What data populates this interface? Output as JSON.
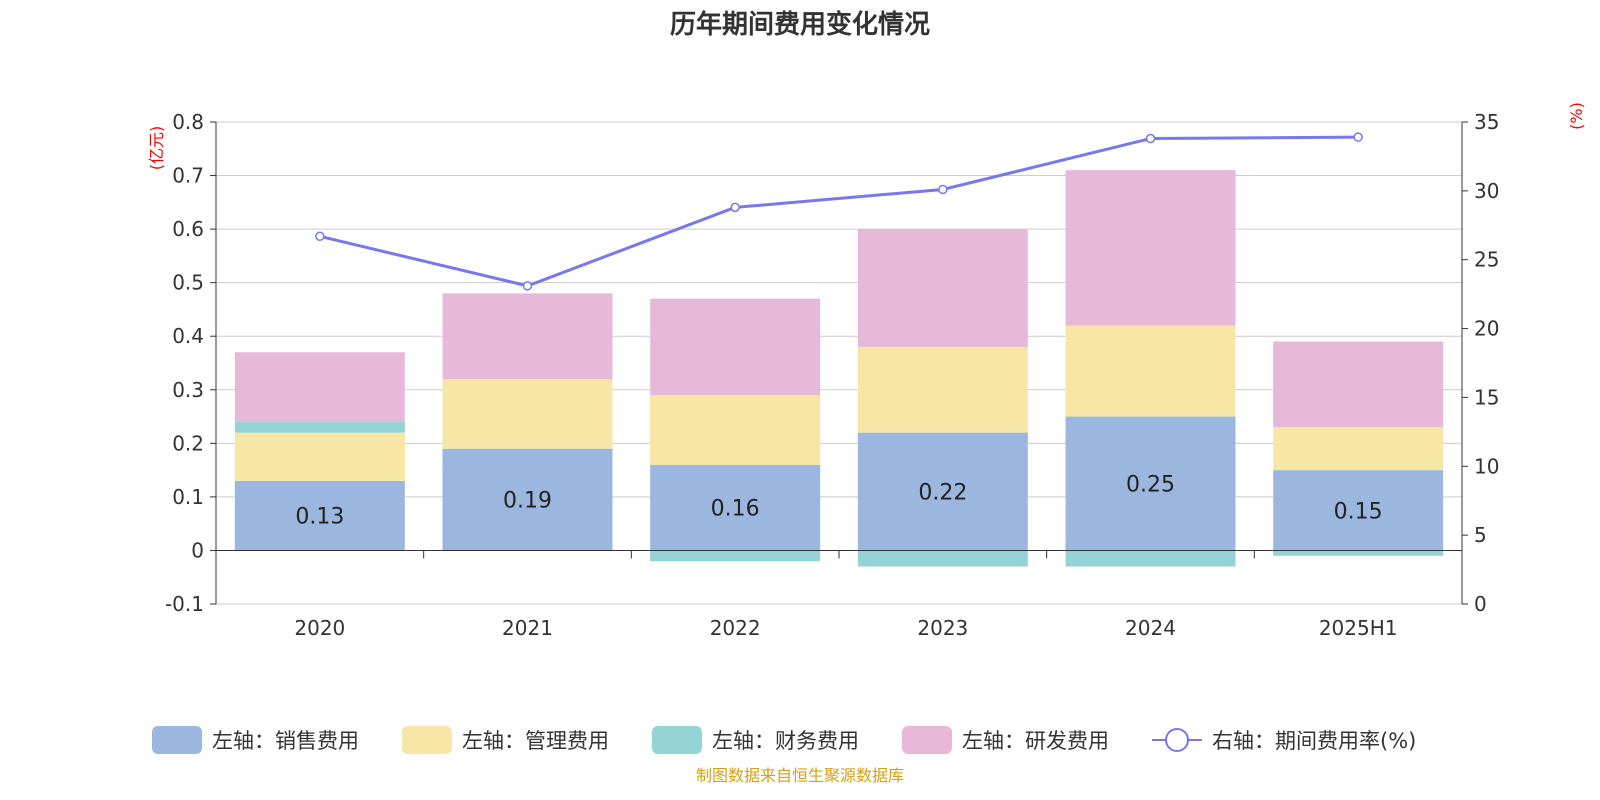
{
  "colors": {
    "sales": "#9bb7e0",
    "admin": "#f8e6a6",
    "finance": "#95d4d4",
    "rd": "#e8b8d8",
    "rate": "#7777ee",
    "unit": "#ff0000",
    "source": "#d4a017"
  },
  "chart_data": {
    "type": "bar",
    "stacked": true,
    "title": "历年期间费用变化情况",
    "categories": [
      "2020",
      "2021",
      "2022",
      "2023",
      "2024",
      "2025H1"
    ],
    "left_axis": {
      "unit": "(亿元)",
      "range": [
        -0.1,
        0.8
      ],
      "ticks": [
        "-0.1",
        "0",
        "0.1",
        "0.2",
        "0.3",
        "0.4",
        "0.5",
        "0.6",
        "0.7",
        "0.8"
      ]
    },
    "right_axis": {
      "unit": "(%)",
      "range": [
        0,
        35
      ],
      "ticks": [
        "0",
        "5",
        "10",
        "15",
        "20",
        "25",
        "30",
        "35"
      ]
    },
    "series": [
      {
        "name": "左轴：销售费用",
        "key": "sales",
        "values": [
          0.13,
          0.19,
          0.16,
          0.22,
          0.25,
          0.15
        ],
        "labels": [
          "0.13",
          "0.19",
          "0.16",
          "0.22",
          "0.25",
          "0.15"
        ]
      },
      {
        "name": "左轴：管理费用",
        "key": "admin",
        "values": [
          0.09,
          0.13,
          0.13,
          0.16,
          0.17,
          0.08
        ]
      },
      {
        "name": "左轴：财务费用",
        "key": "finance",
        "values": [
          0.02,
          0.0,
          -0.02,
          -0.03,
          -0.03,
          -0.01
        ]
      },
      {
        "name": "左轴：研发费用",
        "key": "rd",
        "values": [
          0.13,
          0.16,
          0.18,
          0.22,
          0.29,
          0.16
        ]
      }
    ],
    "line": {
      "name": "右轴：期间费用率(%)",
      "key": "rate",
      "values": [
        26.7,
        23.1,
        28.8,
        30.1,
        33.8,
        33.9
      ]
    },
    "grid": true,
    "legend_position": "bottom",
    "source": "制图数据来自恒生聚源数据库"
  }
}
